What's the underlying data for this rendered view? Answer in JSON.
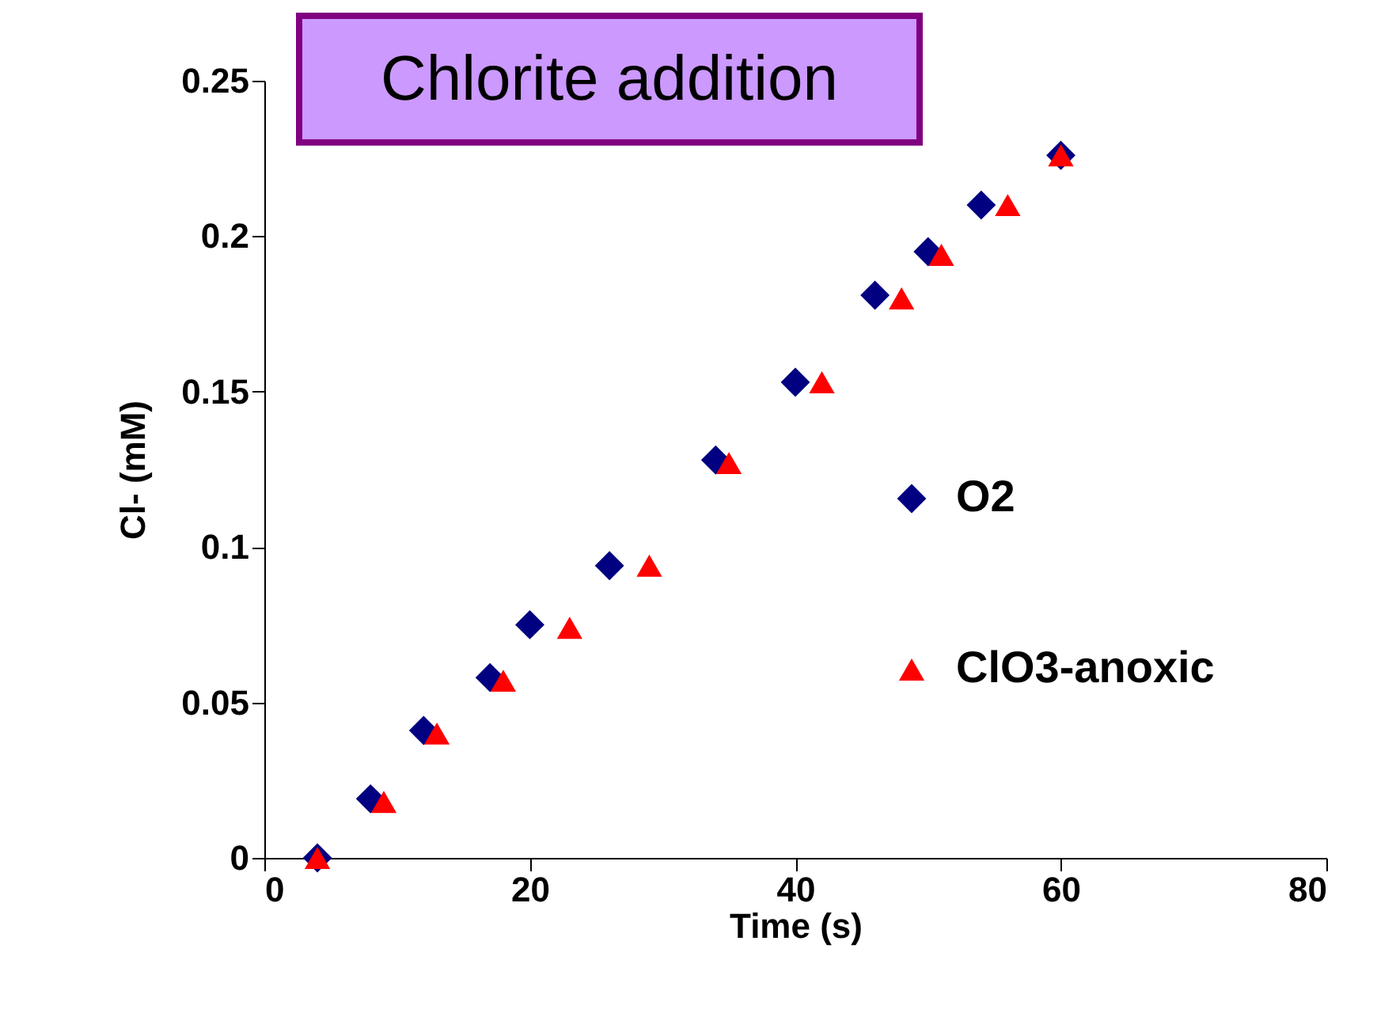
{
  "chart_data": {
    "type": "scatter",
    "title": "Chlorite addition",
    "xlabel": "Time (s)",
    "ylabel": "Cl- (mM)",
    "xlim": [
      0,
      80
    ],
    "xticks": [
      0,
      20,
      40,
      60,
      80
    ],
    "ylim": [
      0,
      0.25
    ],
    "yticks": [
      0,
      0.05,
      0.1,
      0.15,
      0.2,
      0.25
    ],
    "legend": "right",
    "series": [
      {
        "name": "O2",
        "color": "#000080",
        "marker": "diamond",
        "x": [
          4,
          8,
          12,
          17,
          20,
          26,
          34,
          40,
          46,
          50,
          54,
          60
        ],
        "values": [
          0,
          0.019,
          0.041,
          0.058,
          0.075,
          0.094,
          0.128,
          0.153,
          0.181,
          0.195,
          0.21,
          0.226
        ]
      },
      {
        "name": "ClO3-anoxic",
        "color": "#ff0000",
        "marker": "triangle",
        "x": [
          4,
          9,
          13,
          18,
          23,
          29,
          35,
          42,
          48,
          51,
          56,
          60
        ],
        "values": [
          0,
          0.018,
          0.04,
          0.057,
          0.074,
          0.094,
          0.127,
          0.153,
          0.18,
          0.194,
          0.21,
          0.226
        ]
      }
    ]
  }
}
